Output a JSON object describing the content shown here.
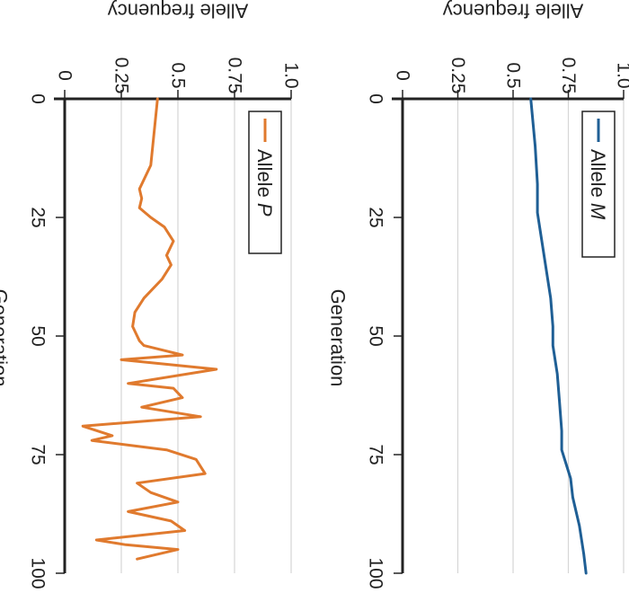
{
  "chart_data": [
    {
      "type": "line",
      "xlabel": "Generation",
      "ylabel": "Allele frequency",
      "xlim": [
        0,
        100
      ],
      "ylim": [
        0,
        1.0
      ],
      "x_ticks": [
        "0",
        "25",
        "50",
        "75",
        "100"
      ],
      "y_ticks": [
        "0",
        "0.25",
        "0.5",
        "0.75",
        "1.0"
      ],
      "grid": true,
      "legend": "top-right",
      "series": [
        {
          "name": "Allele M",
          "legend_prefix": "Allele",
          "legend_italic": "M",
          "color": "#1f5f95",
          "x": [
            0,
            10,
            18,
            24,
            30,
            36,
            42,
            48,
            52,
            58,
            64,
            70,
            74,
            80,
            84,
            90,
            96,
            100
          ],
          "y": [
            0.58,
            0.6,
            0.61,
            0.61,
            0.63,
            0.65,
            0.67,
            0.68,
            0.68,
            0.7,
            0.71,
            0.72,
            0.72,
            0.76,
            0.77,
            0.8,
            0.82,
            0.83
          ]
        }
      ]
    },
    {
      "type": "line",
      "xlabel": "Generation",
      "ylabel": "Allele frequency",
      "xlim": [
        0,
        100
      ],
      "ylim": [
        0,
        1.0
      ],
      "x_ticks": [
        "0",
        "25",
        "50",
        "75",
        "100"
      ],
      "y_ticks": [
        "0",
        "0.25",
        "0.5",
        "0.75",
        "1.0"
      ],
      "grid": true,
      "legend": "top-right",
      "series": [
        {
          "name": "Allele P",
          "legend_prefix": "Allele",
          "legend_italic": "P",
          "color": "#e07a2e",
          "x": [
            0,
            14,
            19,
            21,
            23,
            25,
            27,
            30,
            33,
            35,
            38,
            40,
            42,
            45,
            48,
            51,
            52,
            54,
            55,
            57,
            60,
            61,
            63,
            65,
            67,
            69,
            71,
            72,
            74,
            76,
            79,
            81,
            83,
            85,
            87,
            89,
            91,
            93,
            94,
            95,
            97
          ],
          "y": [
            0.41,
            0.38,
            0.33,
            0.34,
            0.33,
            0.38,
            0.44,
            0.48,
            0.45,
            0.47,
            0.43,
            0.39,
            0.35,
            0.31,
            0.3,
            0.33,
            0.35,
            0.52,
            0.25,
            0.67,
            0.28,
            0.48,
            0.52,
            0.34,
            0.6,
            0.08,
            0.21,
            0.12,
            0.45,
            0.58,
            0.62,
            0.32,
            0.38,
            0.5,
            0.28,
            0.47,
            0.53,
            0.14,
            0.27,
            0.5,
            0.32
          ]
        }
      ]
    }
  ]
}
